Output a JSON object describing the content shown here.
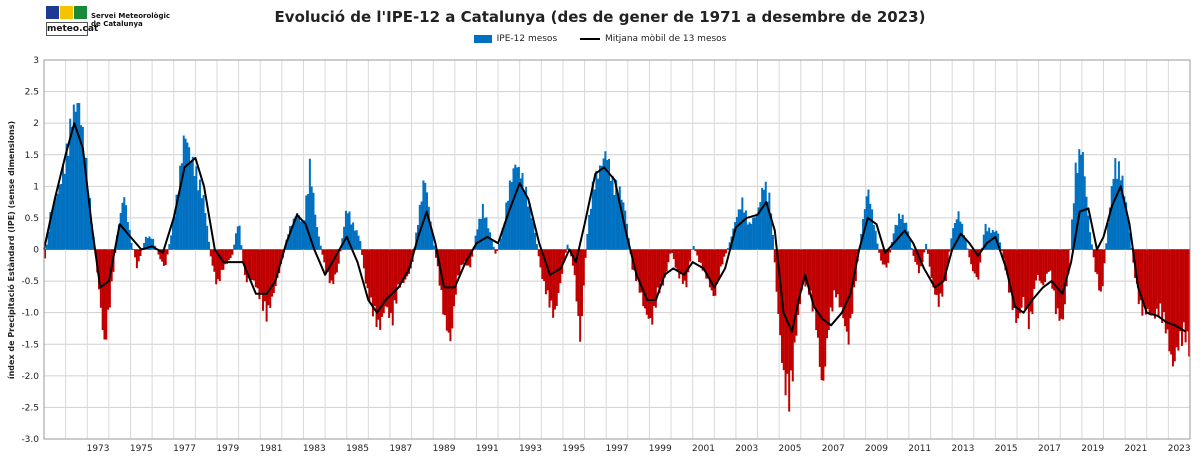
{
  "logo": {
    "brand": "meteo.cat",
    "org_line1": "Servei Meteorològic",
    "org_line2": "de Catalunya",
    "colors": [
      "#1f3a93",
      "#f5c400",
      "#1a8a3a"
    ]
  },
  "chart_data": {
    "type": "bar",
    "title": "Evolució de l'IPE-12 a Catalunya (des de gener de 1971 a desembre de 2023)",
    "xlabel": "",
    "ylabel": "índex de Precipitació Estàndard (IPE)  (sense dimensions)",
    "xlim": [
      1971,
      2024
    ],
    "ylim": [
      -3.0,
      3.0
    ],
    "y_ticks": [
      "-3.0",
      "-2.5",
      "-2.0",
      "-1.5",
      "-1.0",
      "-0.5",
      "0",
      "0.5",
      "1",
      "1.5",
      "2",
      "2.5",
      "3"
    ],
    "x_ticks": [
      "1973",
      "1975",
      "1977",
      "1979",
      "1981",
      "1983",
      "1985",
      "1987",
      "1989",
      "1991",
      "1993",
      "1995",
      "1997",
      "1999",
      "2001",
      "2003",
      "2005",
      "2007",
      "2009",
      "2011",
      "2013",
      "2015",
      "2017",
      "2019",
      "2021",
      "2023"
    ],
    "grid": true,
    "legend_position": "top-center",
    "series": [
      {
        "name": "IPE-12 mesos",
        "kind": "bar",
        "color_positive": "#0070c0",
        "color_negative": "#c00000"
      },
      {
        "name": "Mitjana mòbil de 13 mesos",
        "kind": "line",
        "color": "#000000"
      }
    ],
    "keypoints": [
      [
        1971.0,
        -0.3
      ],
      [
        1971.3,
        0.6
      ],
      [
        1971.7,
        1.0
      ],
      [
        1972.0,
        1.5
      ],
      [
        1972.3,
        2.2
      ],
      [
        1972.6,
        2.4
      ],
      [
        1972.9,
        1.6
      ],
      [
        1973.2,
        0.5
      ],
      [
        1973.5,
        -0.5
      ],
      [
        1973.8,
        -1.6
      ],
      [
        1974.1,
        -0.7
      ],
      [
        1974.4,
        0.3
      ],
      [
        1974.7,
        0.9
      ],
      [
        1975.0,
        0.2
      ],
      [
        1975.3,
        -0.3
      ],
      [
        1975.7,
        0.2
      ],
      [
        1976.0,
        0.2
      ],
      [
        1976.3,
        -0.1
      ],
      [
        1976.6,
        -0.3
      ],
      [
        1976.9,
        0.3
      ],
      [
        1977.2,
        1.0
      ],
      [
        1977.5,
        1.9
      ],
      [
        1977.8,
        1.5
      ],
      [
        1978.1,
        1.2
      ],
      [
        1978.4,
        0.8
      ],
      [
        1978.7,
        -0.1
      ],
      [
        1979.0,
        -0.6
      ],
      [
        1979.3,
        -0.3
      ],
      [
        1979.7,
        -0.1
      ],
      [
        1980.0,
        0.5
      ],
      [
        1980.3,
        -0.5
      ],
      [
        1980.7,
        -0.5
      ],
      [
        1981.0,
        -0.8
      ],
      [
        1981.3,
        -1.1
      ],
      [
        1981.7,
        -0.6
      ],
      [
        1982.0,
        -0.2
      ],
      [
        1982.3,
        0.3
      ],
      [
        1982.7,
        0.6
      ],
      [
        1983.0,
        0.4
      ],
      [
        1983.3,
        1.4
      ],
      [
        1983.6,
        0.4
      ],
      [
        1984.0,
        -0.3
      ],
      [
        1984.3,
        -0.6
      ],
      [
        1984.6,
        -0.3
      ],
      [
        1985.0,
        0.7
      ],
      [
        1985.3,
        0.4
      ],
      [
        1985.6,
        0.2
      ],
      [
        1985.9,
        -0.6
      ],
      [
        1986.2,
        -1.0
      ],
      [
        1986.5,
        -1.3
      ],
      [
        1986.8,
        -0.9
      ],
      [
        1987.1,
        -1.2
      ],
      [
        1987.4,
        -0.6
      ],
      [
        1987.7,
        -0.5
      ],
      [
        1988.0,
        -0.3
      ],
      [
        1988.3,
        0.5
      ],
      [
        1988.6,
        1.2
      ],
      [
        1988.9,
        0.4
      ],
      [
        1989.2,
        -0.3
      ],
      [
        1989.5,
        -1.1
      ],
      [
        1989.8,
        -1.5
      ],
      [
        1990.1,
        -0.5
      ],
      [
        1990.4,
        -0.2
      ],
      [
        1990.7,
        -0.3
      ],
      [
        1991.0,
        0.3
      ],
      [
        1991.3,
        0.7
      ],
      [
        1991.6,
        0.3
      ],
      [
        1991.9,
        -0.1
      ],
      [
        1992.2,
        0.3
      ],
      [
        1992.5,
        1.0
      ],
      [
        1992.8,
        1.4
      ],
      [
        1993.1,
        1.2
      ],
      [
        1993.4,
        0.8
      ],
      [
        1993.7,
        0.3
      ],
      [
        1994.0,
        -0.4
      ],
      [
        1994.3,
        -0.8
      ],
      [
        1994.6,
        -1.1
      ],
      [
        1994.9,
        -0.5
      ],
      [
        1995.2,
        0.1
      ],
      [
        1995.5,
        -0.3
      ],
      [
        1995.8,
        -1.5
      ],
      [
        1996.1,
        0.2
      ],
      [
        1996.4,
        1.1
      ],
      [
        1996.7,
        1.3
      ],
      [
        1997.0,
        1.6
      ],
      [
        1997.3,
        1.1
      ],
      [
        1997.6,
        1.0
      ],
      [
        1997.9,
        0.6
      ],
      [
        1998.2,
        -0.3
      ],
      [
        1998.5,
        -0.6
      ],
      [
        1998.8,
        -1.0
      ],
      [
        1999.1,
        -1.2
      ],
      [
        1999.4,
        -0.7
      ],
      [
        1999.7,
        -0.5
      ],
      [
        2000.0,
        0.0
      ],
      [
        2000.3,
        -0.4
      ],
      [
        2000.7,
        -0.6
      ],
      [
        2001.0,
        0.1
      ],
      [
        2001.3,
        -0.2
      ],
      [
        2001.7,
        -0.5
      ],
      [
        2002.0,
        -0.8
      ],
      [
        2002.3,
        -0.3
      ],
      [
        2002.7,
        0.1
      ],
      [
        2003.0,
        0.5
      ],
      [
        2003.3,
        0.8
      ],
      [
        2003.6,
        0.4
      ],
      [
        2004.0,
        0.6
      ],
      [
        2004.3,
        1.1
      ],
      [
        2004.6,
        0.8
      ],
      [
        2004.9,
        -0.8
      ],
      [
        2005.2,
        -2.1
      ],
      [
        2005.5,
        -2.5
      ],
      [
        2005.8,
        -1.3
      ],
      [
        2006.1,
        -0.5
      ],
      [
        2006.4,
        -0.7
      ],
      [
        2006.7,
        -1.2
      ],
      [
        2007.0,
        -2.3
      ],
      [
        2007.3,
        -1.2
      ],
      [
        2007.6,
        -0.7
      ],
      [
        2007.9,
        -1.0
      ],
      [
        2008.2,
        -1.5
      ],
      [
        2008.5,
        -0.6
      ],
      [
        2008.8,
        0.3
      ],
      [
        2009.1,
        1.0
      ],
      [
        2009.4,
        0.4
      ],
      [
        2009.7,
        -0.2
      ],
      [
        2010.0,
        -0.3
      ],
      [
        2010.3,
        0.3
      ],
      [
        2010.6,
        0.6
      ],
      [
        2010.9,
        0.4
      ],
      [
        2011.2,
        -0.1
      ],
      [
        2011.5,
        -0.4
      ],
      [
        2011.8,
        0.1
      ],
      [
        2012.1,
        -0.6
      ],
      [
        2012.4,
        -0.9
      ],
      [
        2012.7,
        -0.5
      ],
      [
        2013.0,
        0.3
      ],
      [
        2013.3,
        0.6
      ],
      [
        2013.6,
        0.2
      ],
      [
        2013.9,
        -0.3
      ],
      [
        2014.2,
        -0.5
      ],
      [
        2014.5,
        0.4
      ],
      [
        2014.8,
        0.3
      ],
      [
        2015.1,
        0.3
      ],
      [
        2015.4,
        -0.2
      ],
      [
        2015.7,
        -0.8
      ],
      [
        2016.0,
        -1.2
      ],
      [
        2016.3,
        -0.8
      ],
      [
        2016.6,
        -1.3
      ],
      [
        2016.9,
        -0.4
      ],
      [
        2017.2,
        -0.6
      ],
      [
        2017.5,
        -0.3
      ],
      [
        2017.8,
        -1.0
      ],
      [
        2018.1,
        -1.2
      ],
      [
        2018.4,
        -0.3
      ],
      [
        2018.7,
        1.3
      ],
      [
        2019.0,
        1.7
      ],
      [
        2019.3,
        0.5
      ],
      [
        2019.6,
        -0.3
      ],
      [
        2019.9,
        -0.8
      ],
      [
        2020.2,
        0.4
      ],
      [
        2020.5,
        1.4
      ],
      [
        2020.8,
        1.3
      ],
      [
        2021.1,
        0.6
      ],
      [
        2021.4,
        -0.3
      ],
      [
        2021.7,
        -1.0
      ],
      [
        2022.0,
        -1.0
      ],
      [
        2022.3,
        -1.1
      ],
      [
        2022.6,
        -1.0
      ],
      [
        2022.9,
        -1.3
      ],
      [
        2023.2,
        -1.9
      ],
      [
        2023.5,
        -1.5
      ],
      [
        2023.8,
        -1.4
      ],
      [
        2024.0,
        -1.7
      ]
    ],
    "moving_average": [
      [
        1971.0,
        0.0
      ],
      [
        1971.5,
        0.8
      ],
      [
        1972.0,
        1.5
      ],
      [
        1972.4,
        2.0
      ],
      [
        1972.8,
        1.6
      ],
      [
        1973.2,
        0.4
      ],
      [
        1973.6,
        -0.6
      ],
      [
        1974.0,
        -0.5
      ],
      [
        1974.5,
        0.4
      ],
      [
        1975.0,
        0.2
      ],
      [
        1975.5,
        0.0
      ],
      [
        1976.0,
        0.05
      ],
      [
        1976.5,
        -0.05
      ],
      [
        1977.0,
        0.5
      ],
      [
        1977.5,
        1.3
      ],
      [
        1978.0,
        1.45
      ],
      [
        1978.4,
        1.0
      ],
      [
        1978.9,
        0.0
      ],
      [
        1979.3,
        -0.2
      ],
      [
        1979.7,
        -0.2
      ],
      [
        1980.2,
        -0.2
      ],
      [
        1980.8,
        -0.7
      ],
      [
        1981.3,
        -0.7
      ],
      [
        1981.7,
        -0.5
      ],
      [
        1982.2,
        0.1
      ],
      [
        1982.7,
        0.55
      ],
      [
        1983.1,
        0.4
      ],
      [
        1983.5,
        0.0
      ],
      [
        1984.0,
        -0.4
      ],
      [
        1984.5,
        -0.1
      ],
      [
        1985.0,
        0.2
      ],
      [
        1985.5,
        -0.2
      ],
      [
        1986.0,
        -0.8
      ],
      [
        1986.4,
        -1.0
      ],
      [
        1986.8,
        -0.8
      ],
      [
        1987.4,
        -0.6
      ],
      [
        1987.9,
        -0.3
      ],
      [
        1988.3,
        0.2
      ],
      [
        1988.7,
        0.6
      ],
      [
        1989.1,
        0.1
      ],
      [
        1989.5,
        -0.6
      ],
      [
        1990.0,
        -0.6
      ],
      [
        1990.5,
        -0.2
      ],
      [
        1991.0,
        0.1
      ],
      [
        1991.5,
        0.2
      ],
      [
        1992.0,
        0.1
      ],
      [
        1992.5,
        0.6
      ],
      [
        1993.0,
        1.05
      ],
      [
        1993.4,
        0.8
      ],
      [
        1993.9,
        0.1
      ],
      [
        1994.4,
        -0.4
      ],
      [
        1994.9,
        -0.3
      ],
      [
        1995.3,
        0.0
      ],
      [
        1995.6,
        -0.2
      ],
      [
        1996.0,
        0.4
      ],
      [
        1996.5,
        1.2
      ],
      [
        1996.9,
        1.3
      ],
      [
        1997.4,
        1.1
      ],
      [
        1997.9,
        0.3
      ],
      [
        1998.4,
        -0.4
      ],
      [
        1998.9,
        -0.8
      ],
      [
        1999.3,
        -0.8
      ],
      [
        1999.7,
        -0.4
      ],
      [
        2000.1,
        -0.3
      ],
      [
        2000.6,
        -0.4
      ],
      [
        2001.0,
        -0.2
      ],
      [
        2001.5,
        -0.3
      ],
      [
        2002.0,
        -0.6
      ],
      [
        2002.5,
        -0.3
      ],
      [
        2003.0,
        0.35
      ],
      [
        2003.5,
        0.5
      ],
      [
        2004.0,
        0.55
      ],
      [
        2004.4,
        0.75
      ],
      [
        2004.8,
        0.3
      ],
      [
        2005.2,
        -1.0
      ],
      [
        2005.6,
        -1.3
      ],
      [
        2005.9,
        -0.8
      ],
      [
        2006.2,
        -0.4
      ],
      [
        2006.6,
        -0.9
      ],
      [
        2007.0,
        -1.1
      ],
      [
        2007.4,
        -1.2
      ],
      [
        2007.9,
        -1.0
      ],
      [
        2008.3,
        -0.7
      ],
      [
        2008.7,
        0.0
      ],
      [
        2009.1,
        0.5
      ],
      [
        2009.5,
        0.4
      ],
      [
        2009.9,
        -0.05
      ],
      [
        2010.3,
        0.1
      ],
      [
        2010.8,
        0.3
      ],
      [
        2011.2,
        0.1
      ],
      [
        2011.7,
        -0.3
      ],
      [
        2012.2,
        -0.6
      ],
      [
        2012.6,
        -0.5
      ],
      [
        2013.0,
        0.0
      ],
      [
        2013.4,
        0.25
      ],
      [
        2013.8,
        0.1
      ],
      [
        2014.2,
        -0.1
      ],
      [
        2014.6,
        0.1
      ],
      [
        2015.0,
        0.2
      ],
      [
        2015.5,
        -0.3
      ],
      [
        2015.9,
        -0.9
      ],
      [
        2016.3,
        -1.0
      ],
      [
        2016.7,
        -0.8
      ],
      [
        2017.2,
        -0.6
      ],
      [
        2017.6,
        -0.5
      ],
      [
        2018.1,
        -0.7
      ],
      [
        2018.5,
        -0.2
      ],
      [
        2018.9,
        0.6
      ],
      [
        2019.3,
        0.65
      ],
      [
        2019.7,
        0.0
      ],
      [
        2020.0,
        0.2
      ],
      [
        2020.4,
        0.7
      ],
      [
        2020.8,
        1.0
      ],
      [
        2021.2,
        0.4
      ],
      [
        2021.6,
        -0.6
      ],
      [
        2022.0,
        -1.0
      ],
      [
        2022.5,
        -1.05
      ],
      [
        2022.9,
        -1.15
      ],
      [
        2023.3,
        -1.2
      ],
      [
        2023.8,
        -1.3
      ]
    ]
  }
}
